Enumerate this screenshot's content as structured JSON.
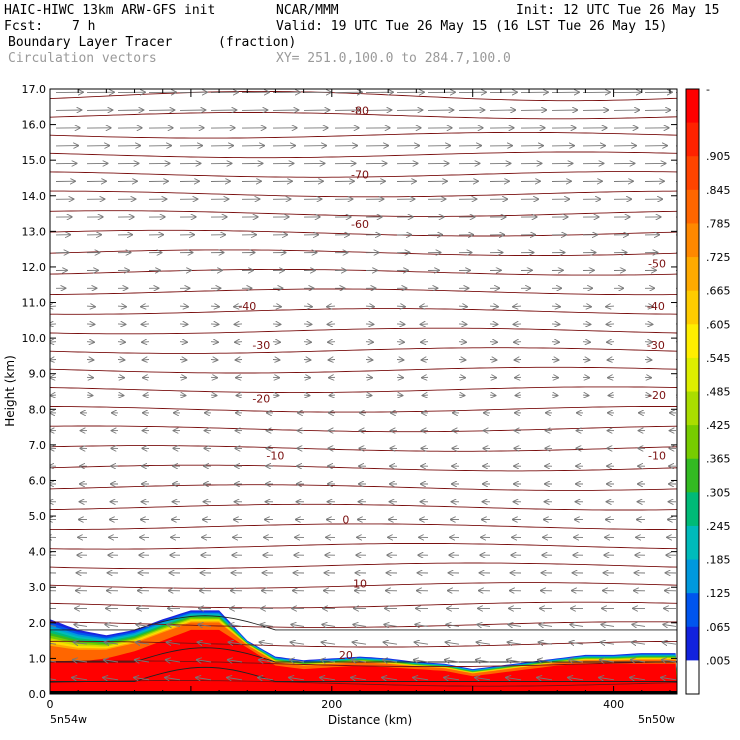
{
  "header": {
    "title": "HAIC-HIWC 13km ARW-GFS init",
    "org": "NCAR/MMM",
    "init": "Init: 12 UTC Tue 26 May 15",
    "fcst_label": "Fcst:",
    "fcst_value": "7 h",
    "valid": "Valid: 19 UTC Tue 26 May 15 (16 LST Tue 26 May 15)",
    "field1_name": "Boundary Layer Tracer",
    "field1_unit": "(fraction)",
    "field2_name": "Circulation vectors",
    "xsec_endpoints": "XY= 251.0,100.0 to 284.7,100.0"
  },
  "chart_data": {
    "type": "heatmap",
    "title": "Boundary Layer Tracer",
    "xlabel": "Distance (km)",
    "ylabel": "Height (km)",
    "xlim": [
      0,
      445
    ],
    "ylim": [
      0,
      17
    ],
    "x_ticks": [
      0,
      200,
      400
    ],
    "y_ticks": [
      "0.0",
      "1.0",
      "2.0",
      "3.0",
      "4.0",
      "5.0",
      "6.0",
      "7.0",
      "8.0",
      "9.0",
      "10.0",
      "11.0",
      "12.0",
      "13.0",
      "14.0",
      "15.0",
      "16.0",
      "17.0"
    ],
    "x_endpoint_labels": [
      "5n54w",
      "5n50w"
    ],
    "colorbar": {
      "labels": [
        "-",
        ".905",
        ".845",
        ".785",
        ".725",
        ".665",
        ".605",
        ".545",
        ".485",
        ".425",
        ".365",
        ".305",
        ".245",
        ".185",
        ".125",
        ".065",
        ".005"
      ],
      "colors": [
        "#ff0000",
        "#ff2200",
        "#ff4400",
        "#ff6600",
        "#ff8800",
        "#ffaa00",
        "#ffcc00",
        "#ffee00",
        "#ddee00",
        "#aadd00",
        "#77cc00",
        "#33bb22",
        "#00bb77",
        "#00bbbb",
        "#0099dd",
        "#0055ee",
        "#1122dd",
        "#ffffff"
      ]
    },
    "tracer_top_km": {
      "x": [
        0,
        20,
        40,
        60,
        80,
        100,
        120,
        140,
        160,
        180,
        200,
        220,
        240,
        260,
        280,
        300,
        320,
        340,
        360,
        380,
        400,
        420,
        445
      ],
      "y": [
        2.1,
        1.8,
        1.65,
        1.8,
        2.1,
        2.35,
        2.35,
        1.5,
        1.05,
        0.95,
        1.0,
        1.05,
        1.0,
        0.9,
        0.85,
        0.7,
        0.8,
        0.9,
        1.0,
        1.1,
        1.1,
        1.15,
        1.15
      ]
    },
    "red_core_top_km": {
      "x": [
        0,
        20,
        40,
        60,
        80,
        100,
        120,
        140,
        160,
        180,
        200,
        220,
        240,
        260,
        280,
        300,
        320,
        340,
        360,
        380,
        400,
        420,
        445
      ],
      "y": [
        0.9,
        0.9,
        1.0,
        1.2,
        1.5,
        1.8,
        1.8,
        1.3,
        0.8,
        0.7,
        0.75,
        0.8,
        0.75,
        0.7,
        0.65,
        0.5,
        0.6,
        0.7,
        0.8,
        0.85,
        0.85,
        0.85,
        0.85
      ]
    },
    "isotherm_labels": [
      {
        "value": "-80",
        "x": 220,
        "y": 16.4
      },
      {
        "value": "-70",
        "x": 220,
        "y": 14.6
      },
      {
        "value": "-60",
        "x": 220,
        "y": 13.2
      },
      {
        "value": "-50",
        "x": 455,
        "y": 12.1
      },
      {
        "value": "-40",
        "x": 140,
        "y": 10.9
      },
      {
        "value": "-40",
        "x": 430,
        "y": 10.9
      },
      {
        "value": "-30",
        "x": 150,
        "y": 9.8
      },
      {
        "value": "-30",
        "x": 430,
        "y": 9.8
      },
      {
        "value": "-20",
        "x": 150,
        "y": 8.3
      },
      {
        "value": "-20",
        "x": 440,
        "y": 8.4
      },
      {
        "value": "-10",
        "x": 160,
        "y": 6.7
      },
      {
        "value": "-10",
        "x": 460,
        "y": 6.7
      },
      {
        "value": "0",
        "x": 210,
        "y": 4.9
      },
      {
        "value": "10",
        "x": 220,
        "y": 3.1
      },
      {
        "value": "20",
        "x": 210,
        "y": 1.1
      }
    ]
  }
}
